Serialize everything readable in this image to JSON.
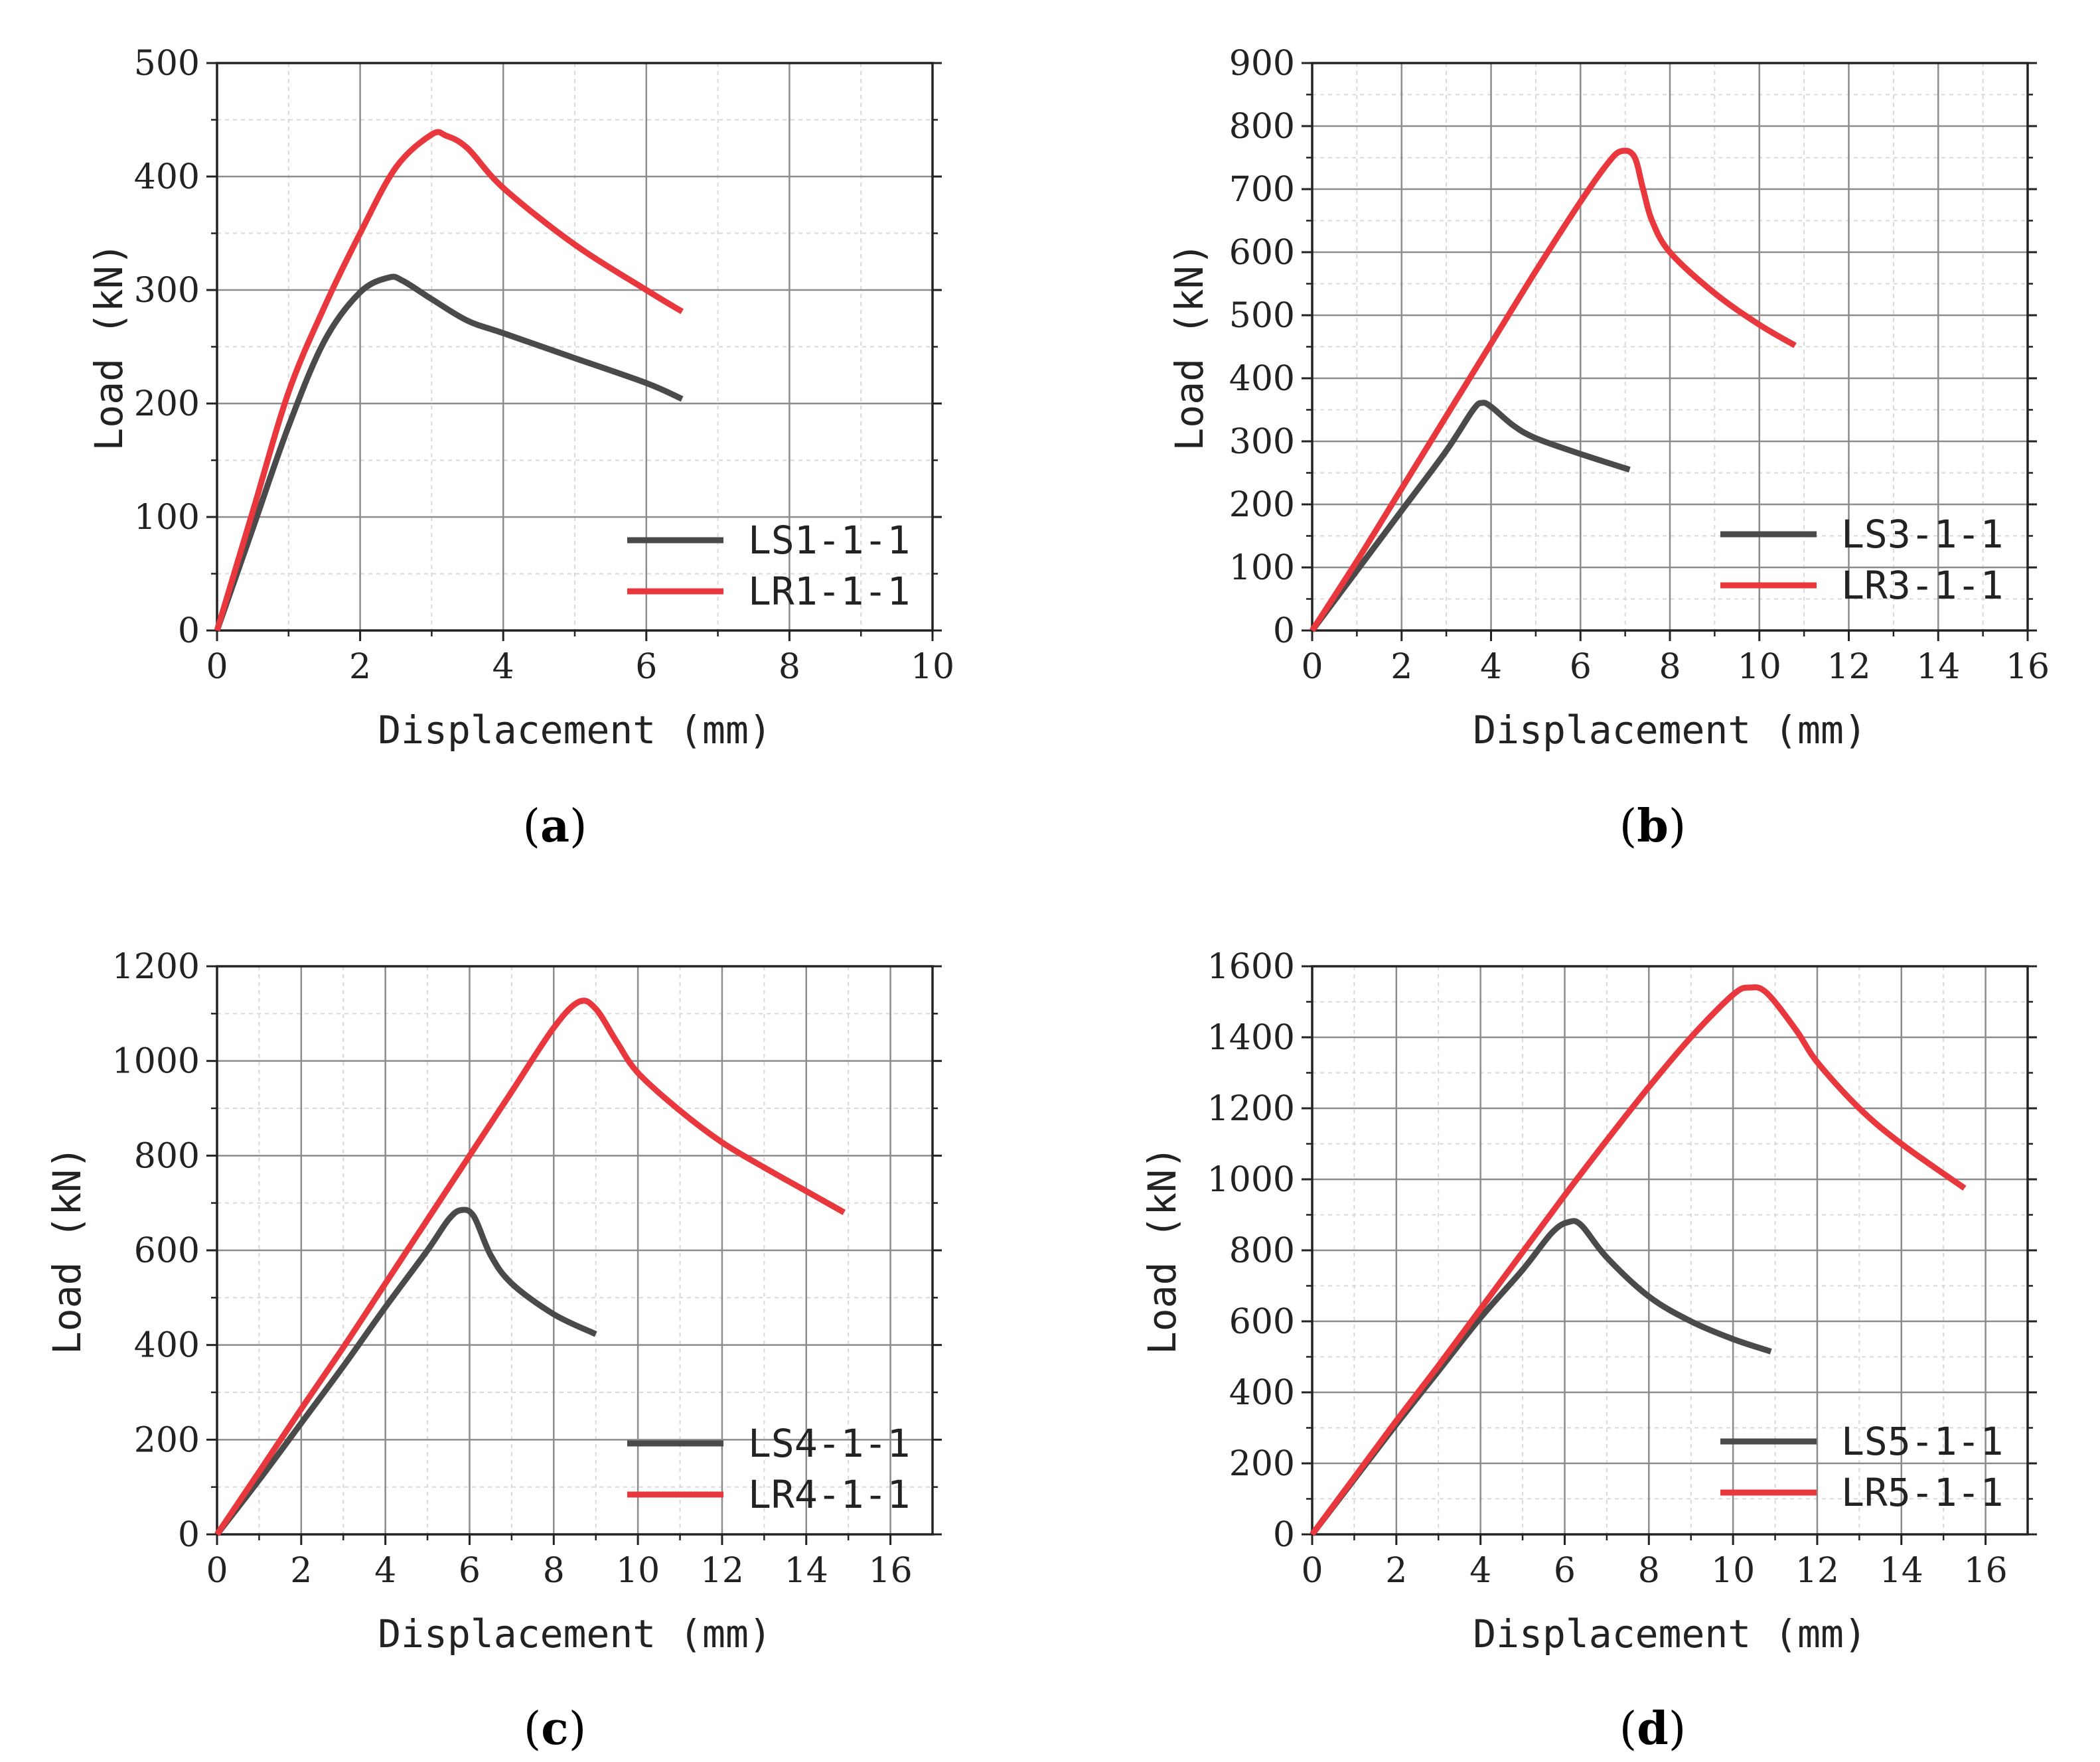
{
  "figure": {
    "colors": {
      "LS": "#4a4a4a",
      "LR": "#e8383d",
      "major_grid": "#8c8c8c",
      "minor_grid": "#d9d9d9",
      "axis": "#222222"
    }
  },
  "chart_data": [
    {
      "panel": "a",
      "caption_prefix": "(",
      "caption_letter": "a",
      "caption_suffix": ")",
      "type": "line",
      "xlabel": "Displacement (mm)",
      "ylabel": "Load (kN)",
      "xlim": [
        0,
        10
      ],
      "ylim": [
        0,
        500
      ],
      "xticks": [
        0,
        2,
        4,
        6,
        8,
        10
      ],
      "yticks": [
        0,
        100,
        200,
        300,
        400,
        500
      ],
      "grid": true,
      "legend_position": "bottom-right",
      "series": [
        {
          "name": "LS1-1-1",
          "color_key": "LS",
          "points": [
            [
              0,
              0
            ],
            [
              0.5,
              90
            ],
            [
              1.0,
              180
            ],
            [
              1.5,
              255
            ],
            [
              2.0,
              298
            ],
            [
              2.4,
              311
            ],
            [
              2.6,
              308
            ],
            [
              3.0,
              292
            ],
            [
              3.5,
              273
            ],
            [
              4.0,
              262
            ],
            [
              5.0,
              240
            ],
            [
              6.0,
              218
            ],
            [
              6.5,
              204
            ]
          ]
        },
        {
          "name": "LR1-1-1",
          "color_key": "LR",
          "points": [
            [
              0,
              0
            ],
            [
              0.5,
              105
            ],
            [
              1.0,
              210
            ],
            [
              1.5,
              285
            ],
            [
              2.0,
              350
            ],
            [
              2.5,
              408
            ],
            [
              3.0,
              437
            ],
            [
              3.2,
              436
            ],
            [
              3.5,
              425
            ],
            [
              4.0,
              390
            ],
            [
              5.0,
              340
            ],
            [
              6.0,
              300
            ],
            [
              6.5,
              281
            ]
          ]
        }
      ]
    },
    {
      "panel": "b",
      "caption_prefix": "(",
      "caption_letter": "b",
      "caption_suffix": ")",
      "type": "line",
      "xlabel": "Displacement (mm)",
      "ylabel": "Load (kN)",
      "xlim": [
        0,
        16
      ],
      "ylim": [
        0,
        900
      ],
      "xticks": [
        0,
        2,
        4,
        6,
        8,
        10,
        12,
        14,
        16
      ],
      "yticks": [
        0,
        100,
        200,
        300,
        400,
        500,
        600,
        700,
        800,
        900
      ],
      "grid": true,
      "legend_position": "bottom-right",
      "series": [
        {
          "name": "LS3-1-1",
          "color_key": "LS",
          "points": [
            [
              0,
              0
            ],
            [
              1,
              95
            ],
            [
              2,
              190
            ],
            [
              3,
              285
            ],
            [
              3.6,
              350
            ],
            [
              3.8,
              361
            ],
            [
              4.0,
              355
            ],
            [
              4.5,
              325
            ],
            [
              5,
              305
            ],
            [
              6,
              280
            ],
            [
              7.1,
              255
            ]
          ]
        },
        {
          "name": "LR3-1-1",
          "color_key": "LR",
          "points": [
            [
              0,
              0
            ],
            [
              1,
              110
            ],
            [
              2,
              225
            ],
            [
              3,
              340
            ],
            [
              4,
              455
            ],
            [
              5,
              570
            ],
            [
              6,
              680
            ],
            [
              6.6,
              740
            ],
            [
              6.9,
              760
            ],
            [
              7.2,
              752
            ],
            [
              7.4,
              700
            ],
            [
              7.6,
              650
            ],
            [
              8,
              600
            ],
            [
              9,
              535
            ],
            [
              10,
              485
            ],
            [
              10.8,
              452
            ]
          ]
        }
      ]
    },
    {
      "panel": "c",
      "caption_prefix": "(",
      "caption_letter": "c",
      "caption_suffix": ")",
      "type": "line",
      "xlabel": "Displacement (mm)",
      "ylabel": "Load (kN)",
      "xlim": [
        0,
        17
      ],
      "ylim": [
        0,
        1200
      ],
      "xticks": [
        0,
        2,
        4,
        6,
        8,
        10,
        12,
        14,
        16
      ],
      "yticks": [
        0,
        200,
        400,
        600,
        800,
        1000,
        1200
      ],
      "grid": true,
      "legend_position": "bottom-right",
      "series": [
        {
          "name": "LS4-1-1",
          "color_key": "LS",
          "points": [
            [
              0,
              0
            ],
            [
              1,
              115
            ],
            [
              2,
              235
            ],
            [
              3,
              355
            ],
            [
              4,
              480
            ],
            [
              5,
              600
            ],
            [
              5.5,
              665
            ],
            [
              5.8,
              685
            ],
            [
              6.1,
              672
            ],
            [
              6.5,
              590
            ],
            [
              7,
              530
            ],
            [
              8,
              465
            ],
            [
              9.0,
              423
            ]
          ]
        },
        {
          "name": "LR4-1-1",
          "color_key": "LR",
          "points": [
            [
              0,
              0
            ],
            [
              1,
              132
            ],
            [
              2,
              265
            ],
            [
              3,
              395
            ],
            [
              4,
              530
            ],
            [
              5,
              665
            ],
            [
              6,
              800
            ],
            [
              7,
              935
            ],
            [
              8,
              1070
            ],
            [
              8.6,
              1125
            ],
            [
              9,
              1110
            ],
            [
              9.5,
              1040
            ],
            [
              10,
              975
            ],
            [
              11,
              895
            ],
            [
              12,
              828
            ],
            [
              13,
              775
            ],
            [
              14,
              725
            ],
            [
              14.9,
              680
            ]
          ]
        }
      ]
    },
    {
      "panel": "d",
      "caption_prefix": "(",
      "caption_letter": "d",
      "caption_suffix": ")",
      "type": "line",
      "xlabel": "Displacement (mm)",
      "ylabel": "Load (kN)",
      "xlim": [
        0,
        17
      ],
      "ylim": [
        0,
        1600
      ],
      "xticks": [
        0,
        2,
        4,
        6,
        8,
        10,
        12,
        14,
        16
      ],
      "yticks": [
        0,
        200,
        400,
        600,
        800,
        1000,
        1200,
        1400,
        1600
      ],
      "grid": true,
      "legend_position": "bottom-right",
      "series": [
        {
          "name": "LS5-1-1",
          "color_key": "LS",
          "points": [
            [
              0,
              0
            ],
            [
              1,
              155
            ],
            [
              2,
              310
            ],
            [
              3,
              460
            ],
            [
              4,
              610
            ],
            [
              5,
              745
            ],
            [
              5.7,
              850
            ],
            [
              6.1,
              880
            ],
            [
              6.4,
              870
            ],
            [
              7,
              780
            ],
            [
              8,
              670
            ],
            [
              9,
              600
            ],
            [
              10,
              550
            ],
            [
              10.9,
              515
            ]
          ]
        },
        {
          "name": "LR5-1-1",
          "color_key": "LR",
          "points": [
            [
              0,
              0
            ],
            [
              1,
              160
            ],
            [
              2,
              320
            ],
            [
              3,
              475
            ],
            [
              4,
              635
            ],
            [
              5,
              795
            ],
            [
              6,
              955
            ],
            [
              7,
              1110
            ],
            [
              8,
              1260
            ],
            [
              9,
              1400
            ],
            [
              10,
              1520
            ],
            [
              10.4,
              1540
            ],
            [
              10.8,
              1525
            ],
            [
              11.5,
              1420
            ],
            [
              12,
              1330
            ],
            [
              13,
              1200
            ],
            [
              14,
              1100
            ],
            [
              15.5,
              975
            ]
          ]
        }
      ]
    }
  ]
}
